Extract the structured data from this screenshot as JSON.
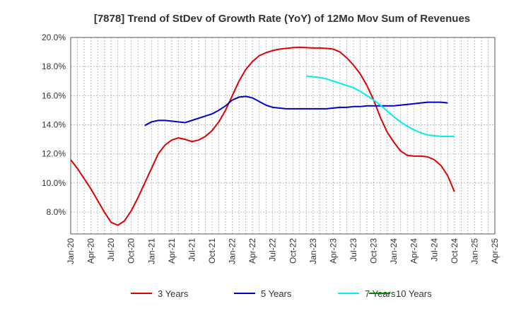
{
  "chart_data": {
    "type": "line",
    "title": "[7878]  Trend of StDev of Growth Rate (YoY) of 12Mo Mov Sum of Revenues",
    "xlabel": "",
    "ylabel": "",
    "ylim": [
      6.5,
      20.0
    ],
    "y_ticks": [
      8.0,
      10.0,
      12.0,
      14.0,
      16.0,
      18.0,
      20.0
    ],
    "y_tick_labels": [
      "8.0%",
      "10.0%",
      "12.0%",
      "14.0%",
      "16.0%",
      "18.0%",
      "20.0%"
    ],
    "x_ticks": [
      "Jan-20",
      "Apr-20",
      "Jul-20",
      "Oct-20",
      "Jan-21",
      "Apr-21",
      "Jul-21",
      "Oct-21",
      "Jan-22",
      "Apr-22",
      "Jul-22",
      "Oct-22",
      "Jan-23",
      "Apr-23",
      "Jul-23",
      "Oct-23",
      "Jan-24",
      "Apr-24",
      "Jul-24",
      "Oct-24",
      "Jan-25",
      "Apr-25"
    ],
    "x_start": "Jan-20",
    "x_end": "Apr-25",
    "grid": true,
    "legend_position": "bottom",
    "series": [
      {
        "name": "3 Years",
        "color": "#dd0000",
        "start": "Jan-20",
        "values": [
          11.6,
          11.0,
          10.3,
          9.6,
          8.8,
          8.0,
          7.3,
          7.1,
          7.4,
          8.1,
          9.0,
          10.0,
          11.0,
          12.0,
          12.6,
          12.95,
          13.1,
          13.0,
          12.85,
          12.95,
          13.2,
          13.6,
          14.2,
          15.0,
          16.0,
          17.0,
          17.8,
          18.35,
          18.75,
          18.95,
          19.1,
          19.2,
          19.25,
          19.3,
          19.32,
          19.3,
          19.28,
          19.28,
          19.25,
          19.2,
          19.0,
          18.6,
          18.1,
          17.5,
          16.7,
          15.7,
          14.5,
          13.5,
          12.8,
          12.2,
          11.9,
          11.85,
          11.85,
          11.8,
          11.6,
          11.2,
          10.5,
          9.4
        ]
      },
      {
        "name": "5 Years",
        "color": "#0000cc",
        "start": "Dec-20",
        "values": [
          13.95,
          14.2,
          14.3,
          14.3,
          14.25,
          14.2,
          14.15,
          14.3,
          14.45,
          14.6,
          14.75,
          15.0,
          15.3,
          15.7,
          15.9,
          15.95,
          15.85,
          15.6,
          15.35,
          15.2,
          15.15,
          15.1,
          15.1,
          15.1,
          15.1,
          15.1,
          15.1,
          15.1,
          15.15,
          15.2,
          15.2,
          15.25,
          15.25,
          15.3,
          15.3,
          15.3,
          15.3,
          15.3,
          15.35,
          15.4,
          15.45,
          15.5,
          15.55,
          15.55,
          15.55,
          15.5
        ]
      },
      {
        "name": "7 Years",
        "color": "#00eeee",
        "start": "Dec-22",
        "values": [
          17.35,
          17.3,
          17.25,
          17.15,
          17.0,
          16.85,
          16.7,
          16.55,
          16.3,
          16.0,
          15.7,
          15.35,
          14.95,
          14.55,
          14.2,
          13.9,
          13.65,
          13.45,
          13.3,
          13.25,
          13.2,
          13.2,
          13.2
        ]
      },
      {
        "name": "10 Years",
        "color": "#008800",
        "start": "Jan-20",
        "values": []
      }
    ]
  }
}
